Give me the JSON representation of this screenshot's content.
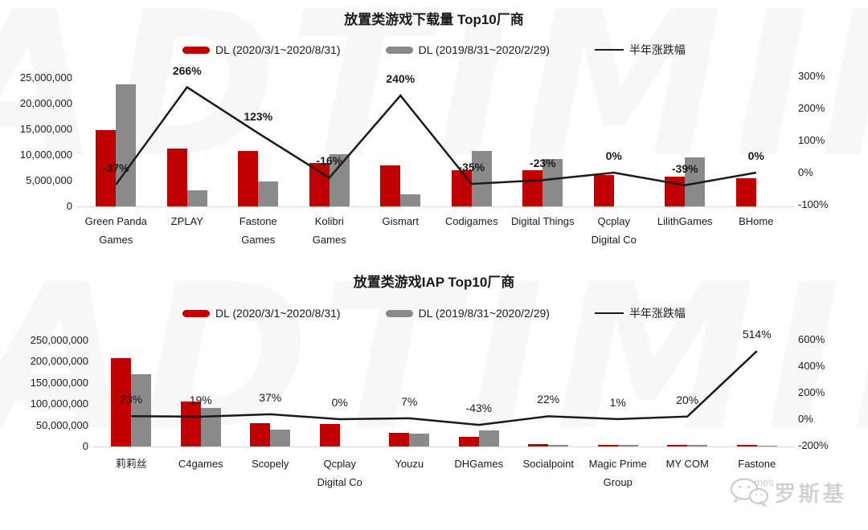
{
  "watermark": {
    "brand_text": "ADTIMING",
    "wechat_text": "罗斯基"
  },
  "chart_data": [
    {
      "type": "bar+line combo",
      "title": "放置类游戏下载量 Top10厂商",
      "legend_position": "top",
      "grid": false,
      "colors": {
        "bar_current": "#c00000",
        "bar_previous": "#8a8a8a",
        "line": "#1a1a1a"
      },
      "categories": [
        "Green Panda Games",
        "ZPLAY",
        "Fastone Games",
        "Kolibri Games",
        "Gismart",
        "Codigames",
        "Digital Things",
        "Qcplay Digital Co",
        "LilithGames",
        "BHome"
      ],
      "series": [
        {
          "name": "DL (2020/3/1~2020/8/31)",
          "type": "bar",
          "axis": "left",
          "values": [
            14800000,
            11300000,
            10800000,
            8500000,
            8000000,
            7000000,
            7100000,
            6100000,
            5800000,
            5500000
          ]
        },
        {
          "name": "DL (2019/8/31~2020/2/29)",
          "type": "bar",
          "axis": "left",
          "values": [
            23700000,
            3100000,
            4800000,
            10100000,
            2400000,
            10800000,
            9200000,
            0,
            9500000,
            0
          ]
        },
        {
          "name": "半年涨跌幅",
          "type": "line",
          "axis": "right",
          "values": [
            -37,
            266,
            123,
            -16,
            240,
            -35,
            -23,
            0,
            -39,
            0
          ]
        }
      ],
      "point_labels": [
        "-37%",
        "266%",
        "123%",
        "-16%",
        "240%",
        "-35%",
        "-23%",
        "0%",
        "-39%",
        "0%"
      ],
      "left_axis": {
        "min": 0,
        "max": 25000000,
        "step": 5000000
      },
      "right_axis": {
        "min": -100,
        "max": 300,
        "step": 100,
        "unit": "%"
      }
    },
    {
      "type": "bar+line combo",
      "title": "放置类游戏IAP Top10厂商",
      "legend_position": "top",
      "grid": false,
      "colors": {
        "bar_current": "#c00000",
        "bar_previous": "#8a8a8a",
        "line": "#1a1a1a"
      },
      "categories": [
        "莉莉丝",
        "C4games",
        "Scopely",
        "Qcplay Digital Co",
        "Youzu",
        "DHGames",
        "Socialpoint",
        "Magic Prime Group",
        "MY COM",
        "Fastone Games"
      ],
      "series": [
        {
          "name": "DL (2020/3/1~2020/8/31)",
          "type": "bar",
          "axis": "left",
          "values": [
            209000000,
            107000000,
            55000000,
            53000000,
            32000000,
            22000000,
            5500000,
            4000000,
            3600000,
            4300000
          ]
        },
        {
          "name": "DL (2019/8/31~2020/2/29)",
          "type": "bar",
          "axis": "left",
          "values": [
            170000000,
            90000000,
            40000000,
            0,
            30000000,
            38000000,
            4500000,
            4000000,
            3000000,
            700000
          ]
        },
        {
          "name": "半年涨跌幅",
          "type": "line",
          "axis": "right",
          "values": [
            23,
            19,
            37,
            0,
            7,
            -43,
            22,
            1,
            20,
            514
          ]
        }
      ],
      "point_labels": [
        "23%",
        "19%",
        "37%",
        "0%",
        "7%",
        "-43%",
        "22%",
        "1%",
        "20%",
        "514%"
      ],
      "left_axis": {
        "min": 0,
        "max": 250000000,
        "step": 50000000
      },
      "right_axis": {
        "min": -200,
        "max": 600,
        "step": 200,
        "unit": "%"
      }
    }
  ]
}
